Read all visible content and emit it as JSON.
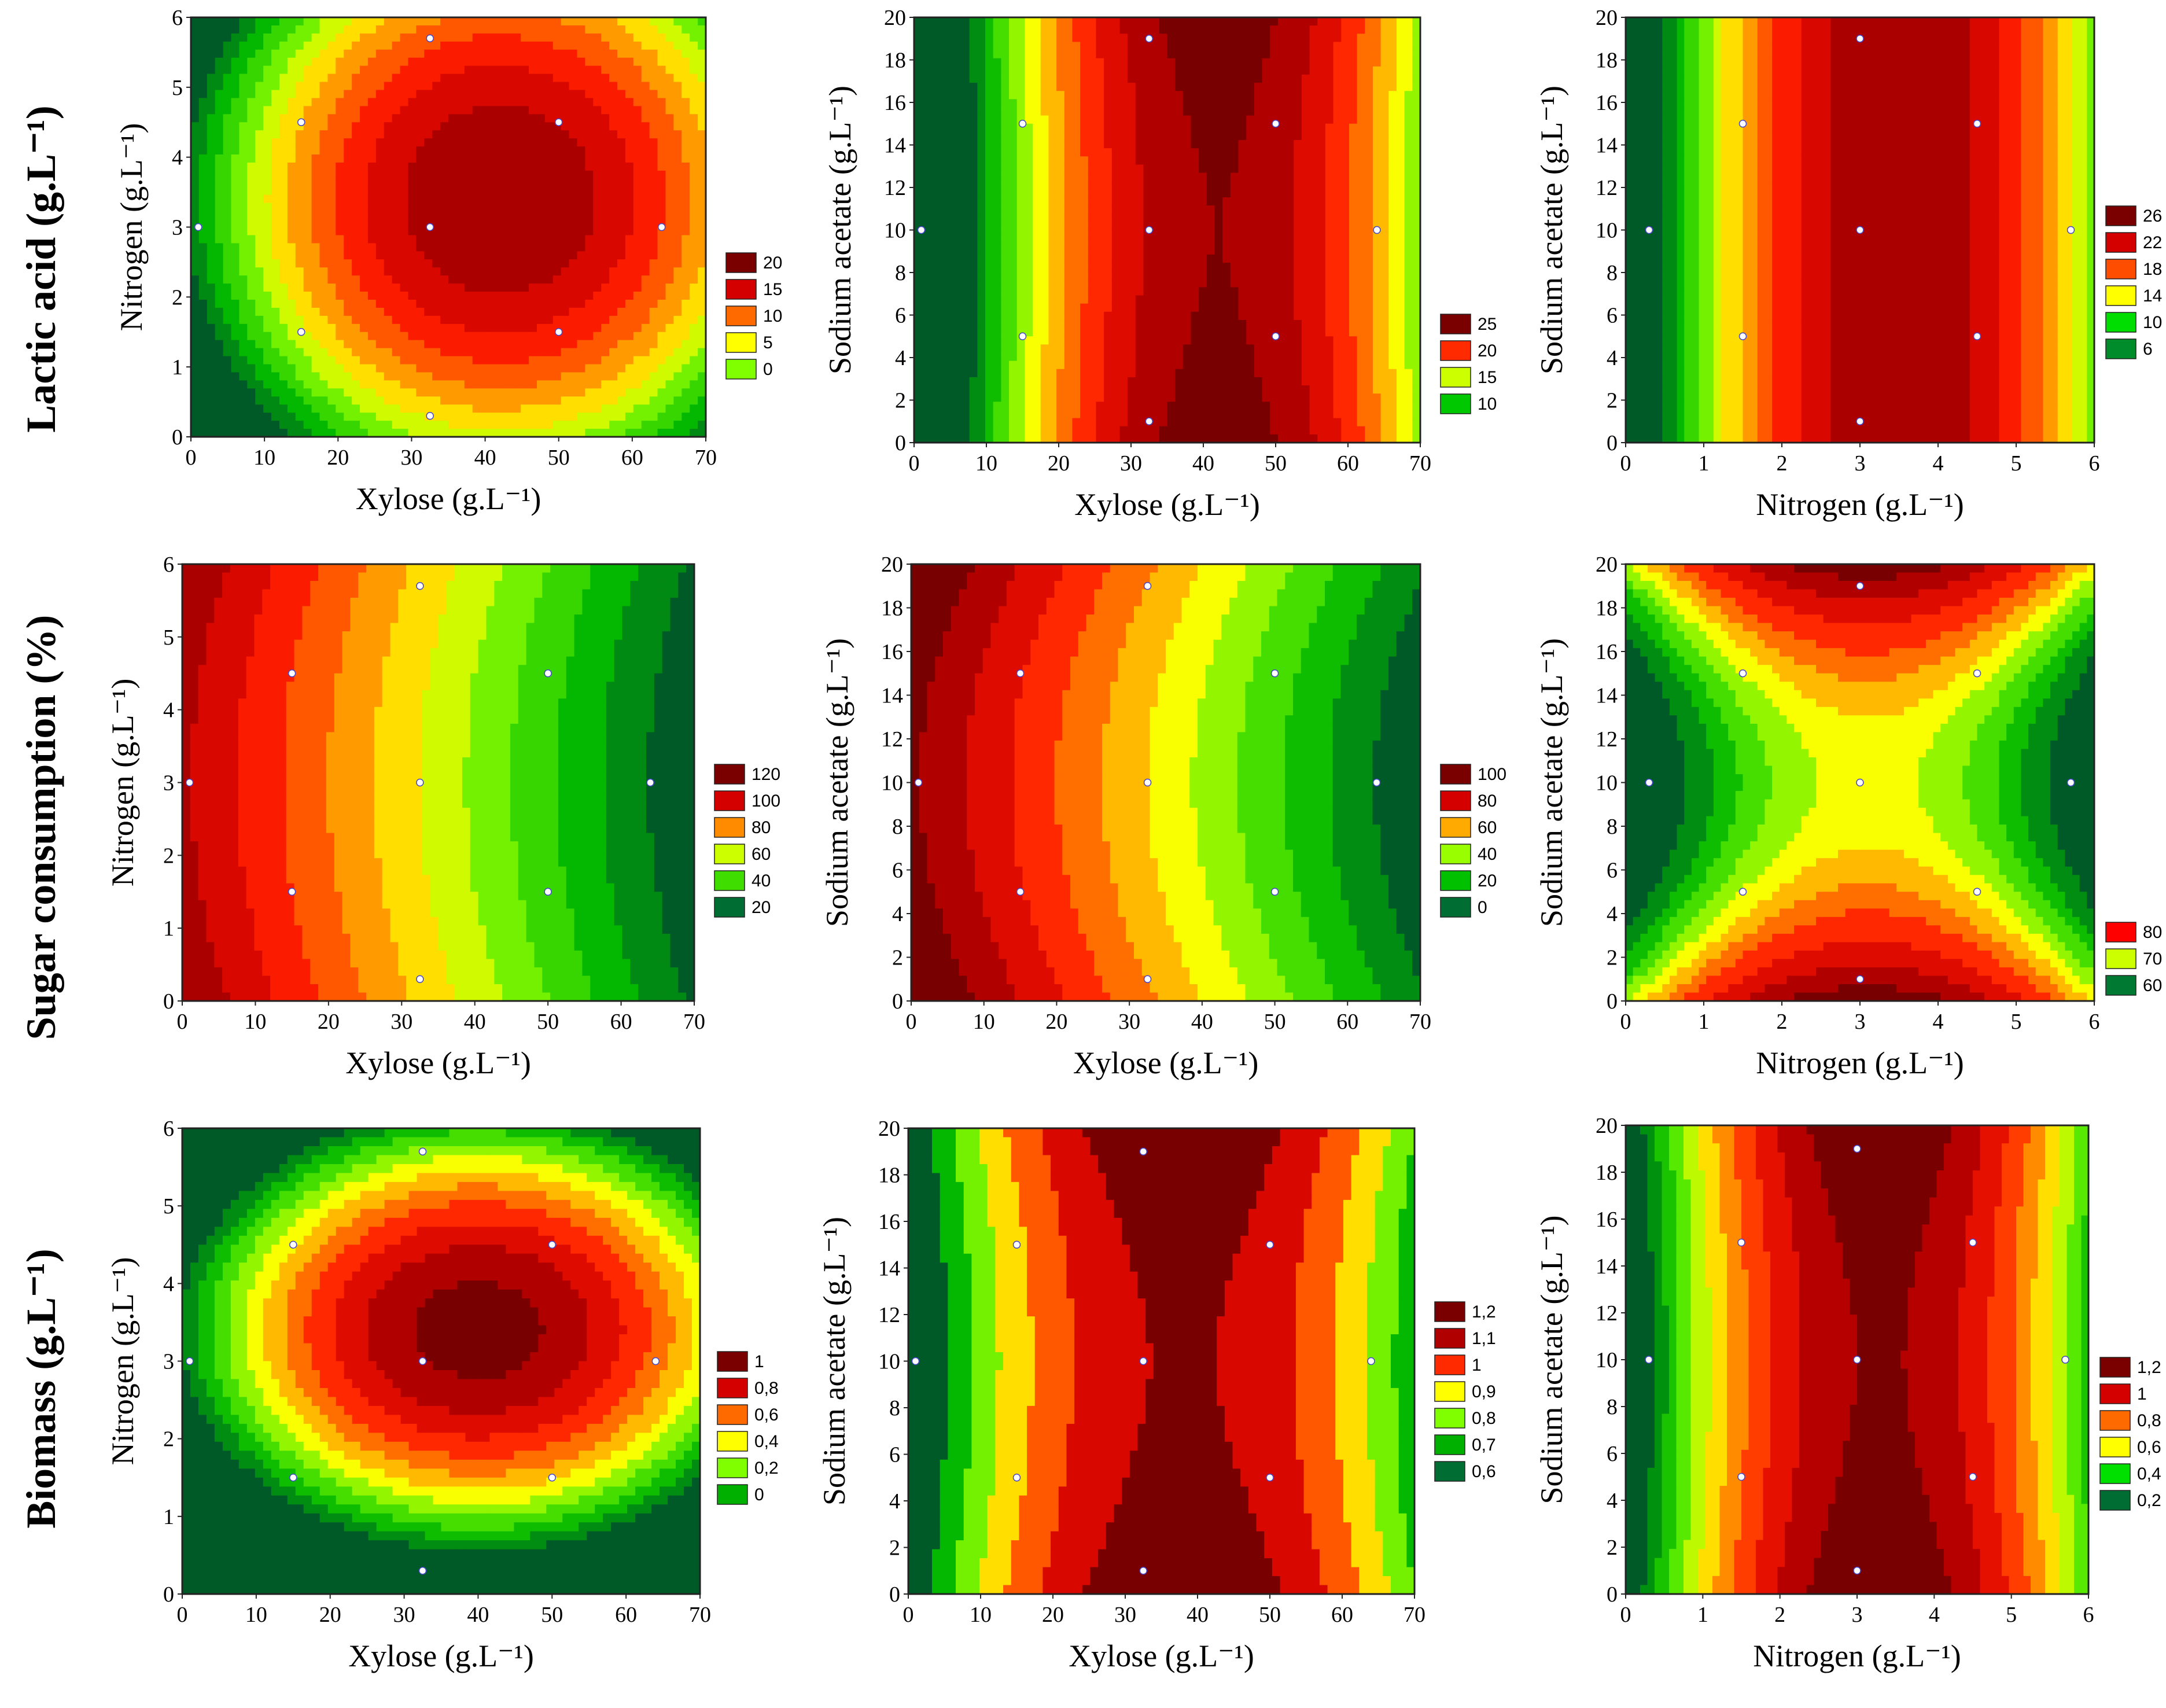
{
  "figure": {
    "row_labels": [
      "Lactic acid (g.L⁻¹)",
      "Sugar consumption (%)",
      "Biomass (g.L⁻¹)"
    ],
    "axis_titles": {
      "xylose": "Xylose (g.L⁻¹)",
      "nitrogen": "Nitrogen (g.L⁻¹)",
      "sodium_acetate": "Sodium acetate (g.L⁻¹)"
    }
  },
  "chart_data": [
    {
      "id": "p11",
      "type": "contour",
      "response": "Lactic acid",
      "xlabel": "Xylose (g.L⁻¹)",
      "ylabel": "Nitrogen (g.L⁻¹)",
      "xlim": [
        0,
        70
      ],
      "ylim": [
        0,
        6
      ],
      "xticks": [
        0,
        10,
        20,
        30,
        40,
        50,
        60,
        70
      ],
      "yticks": [
        0,
        1,
        2,
        3,
        4,
        5,
        6
      ],
      "surface": {
        "form": "quadratic",
        "center": [
          42,
          3.4
        ],
        "peak": 24,
        "ax": 0.012,
        "ay": 1.1,
        "bxy": 0
      },
      "levels": [
        24,
        22,
        20,
        18,
        16,
        14,
        12,
        10,
        8,
        6,
        4,
        2,
        0
      ],
      "legend": [
        {
          "label": "20",
          "color": "#7a0000"
        },
        {
          "label": "15",
          "color": "#d40000"
        },
        {
          "label": "10",
          "color": "#ff6a00"
        },
        {
          "label": "5",
          "color": "#ffff00"
        },
        {
          "label": "0",
          "color": "#80ff00"
        }
      ],
      "design_points": [
        [
          1,
          3
        ],
        [
          15,
          4.5
        ],
        [
          15,
          1.5
        ],
        [
          32.5,
          5.7
        ],
        [
          32.5,
          3
        ],
        [
          32.5,
          0.3
        ],
        [
          50,
          4.5
        ],
        [
          50,
          1.5
        ],
        [
          64,
          3
        ]
      ]
    },
    {
      "id": "p12",
      "type": "contour",
      "response": "Lactic acid",
      "xlabel": "Xylose (g.L⁻¹)",
      "ylabel": "Sodium acetate (g.L⁻¹)",
      "xlim": [
        0,
        70
      ],
      "ylim": [
        0,
        20
      ],
      "xticks": [
        0,
        10,
        20,
        30,
        40,
        50,
        60,
        70
      ],
      "yticks": [
        0,
        2,
        4,
        6,
        8,
        10,
        12,
        14,
        16,
        18,
        20
      ],
      "surface": {
        "form": "quadratic",
        "center": [
          42,
          10
        ],
        "peak": 30,
        "ax": 0.018,
        "ay": -0.012,
        "bxy": 0
      },
      "levels": [
        30,
        28,
        26,
        24,
        22,
        20,
        18,
        16,
        14,
        12,
        10,
        8
      ],
      "legend": [
        {
          "label": "25",
          "color": "#7a0000"
        },
        {
          "label": "20",
          "color": "#ff2a00"
        },
        {
          "label": "15",
          "color": "#ccff00"
        },
        {
          "label": "10",
          "color": "#00c800"
        }
      ],
      "design_points": [
        [
          1,
          10
        ],
        [
          15,
          15
        ],
        [
          15,
          5
        ],
        [
          32.5,
          19
        ],
        [
          32.5,
          10
        ],
        [
          32.5,
          1
        ],
        [
          50,
          15
        ],
        [
          50,
          5
        ],
        [
          64,
          10
        ]
      ]
    },
    {
      "id": "p13",
      "type": "contour",
      "response": "Lactic acid",
      "xlabel": "Nitrogen (g.L⁻¹)",
      "ylabel": "Sodium acetate (g.L⁻¹)",
      "xlim": [
        0,
        6
      ],
      "ylim": [
        0,
        20
      ],
      "xticks": [
        0,
        1,
        2,
        3,
        4,
        5,
        6
      ],
      "yticks": [
        0,
        2,
        4,
        6,
        8,
        10,
        12,
        14,
        16,
        18,
        20
      ],
      "surface": {
        "form": "quadratic",
        "center": [
          3.5,
          10
        ],
        "peak": 30,
        "ax": 2.4,
        "ay": 0,
        "bxy": 0
      },
      "levels": [
        30,
        28,
        26,
        24,
        22,
        20,
        18,
        16,
        14,
        12,
        10,
        8,
        6
      ],
      "legend": [
        {
          "label": "26",
          "color": "#7a0000"
        },
        {
          "label": "22",
          "color": "#d40000"
        },
        {
          "label": "18",
          "color": "#ff4d00"
        },
        {
          "label": "14",
          "color": "#ffff00"
        },
        {
          "label": "10",
          "color": "#00dd00"
        },
        {
          "label": "6",
          "color": "#008c2a"
        }
      ],
      "design_points": [
        [
          0.3,
          10
        ],
        [
          1.5,
          15
        ],
        [
          1.5,
          5
        ],
        [
          3,
          19
        ],
        [
          3,
          10
        ],
        [
          3,
          1
        ],
        [
          4.5,
          15
        ],
        [
          4.5,
          5
        ],
        [
          5.7,
          10
        ]
      ]
    },
    {
      "id": "p21",
      "type": "contour",
      "response": "Sugar consumption",
      "xlabel": "Xylose (g.L⁻¹)",
      "ylabel": "Nitrogen (g.L⁻¹)",
      "xlim": [
        0,
        70
      ],
      "ylim": [
        0,
        6
      ],
      "xticks": [
        0,
        10,
        20,
        30,
        40,
        50,
        60,
        70
      ],
      "yticks": [
        0,
        1,
        2,
        3,
        4,
        5,
        6
      ],
      "surface": {
        "form": "linear",
        "x0": 70,
        "y0": 3,
        "base": 10,
        "cx": 1.6,
        "cy": 0.9
      },
      "levels": [
        130,
        120,
        110,
        100,
        90,
        80,
        70,
        60,
        50,
        40,
        30,
        20,
        10
      ],
      "legend": [
        {
          "label": "120",
          "color": "#7a0000"
        },
        {
          "label": "100",
          "color": "#d40000"
        },
        {
          "label": "80",
          "color": "#ff8c00"
        },
        {
          "label": "60",
          "color": "#ccff00"
        },
        {
          "label": "40",
          "color": "#40dd00"
        },
        {
          "label": "20",
          "color": "#006e33"
        }
      ],
      "design_points": [
        [
          1,
          3
        ],
        [
          15,
          4.5
        ],
        [
          15,
          1.5
        ],
        [
          32.5,
          5.7
        ],
        [
          32.5,
          3
        ],
        [
          32.5,
          0.3
        ],
        [
          50,
          4.5
        ],
        [
          50,
          1.5
        ],
        [
          64,
          3
        ]
      ]
    },
    {
      "id": "p22",
      "type": "contour",
      "response": "Sugar consumption",
      "xlabel": "Xylose (g.L⁻¹)",
      "ylabel": "Sodium acetate (g.L⁻¹)",
      "xlim": [
        0,
        70
      ],
      "ylim": [
        0,
        20
      ],
      "xticks": [
        0,
        10,
        20,
        30,
        40,
        50,
        60,
        70
      ],
      "yticks": [
        0,
        2,
        4,
        6,
        8,
        10,
        12,
        14,
        16,
        18,
        20
      ],
      "surface": {
        "form": "linear",
        "x0": 70,
        "y0": 10,
        "base": 0,
        "cx": 1.6,
        "cy": 0.12
      },
      "levels": [
        110,
        100,
        90,
        80,
        70,
        60,
        50,
        40,
        30,
        20,
        10,
        0
      ],
      "legend": [
        {
          "label": "100",
          "color": "#7a0000"
        },
        {
          "label": "80",
          "color": "#d40000"
        },
        {
          "label": "60",
          "color": "#ffaa00"
        },
        {
          "label": "40",
          "color": "#99ff00"
        },
        {
          "label": "20",
          "color": "#00c000"
        },
        {
          "label": "0",
          "color": "#006e33"
        }
      ],
      "design_points": [
        [
          1,
          10
        ],
        [
          15,
          15
        ],
        [
          15,
          5
        ],
        [
          32.5,
          19
        ],
        [
          32.5,
          10
        ],
        [
          32.5,
          1
        ],
        [
          50,
          15
        ],
        [
          50,
          5
        ],
        [
          64,
          10
        ]
      ]
    },
    {
      "id": "p23",
      "type": "contour",
      "response": "Sugar consumption",
      "xlabel": "Nitrogen (g.L⁻¹)",
      "ylabel": "Sodium acetate (g.L⁻¹)",
      "xlim": [
        0,
        6
      ],
      "ylim": [
        0,
        20
      ],
      "xticks": [
        0,
        1,
        2,
        3,
        4,
        5,
        6
      ],
      "yticks": [
        0,
        2,
        4,
        6,
        8,
        10,
        12,
        14,
        16,
        18,
        20
      ],
      "surface": {
        "form": "saddle",
        "center": [
          3.1,
          10
        ],
        "base": 70,
        "kx": 2.6,
        "ky": 0.23
      },
      "levels": [
        90,
        86,
        82,
        78,
        75,
        72,
        69,
        66,
        63,
        60,
        56,
        52
      ],
      "legend": [
        {
          "label": "80",
          "color": "#ff0000"
        },
        {
          "label": "70",
          "color": "#ccff00"
        },
        {
          "label": "60",
          "color": "#007a33"
        }
      ],
      "design_points": [
        [
          0.3,
          10
        ],
        [
          1.5,
          15
        ],
        [
          1.5,
          5
        ],
        [
          3,
          19
        ],
        [
          3,
          10
        ],
        [
          3,
          1
        ],
        [
          4.5,
          15
        ],
        [
          4.5,
          5
        ],
        [
          5.7,
          10
        ]
      ]
    },
    {
      "id": "p31",
      "type": "contour",
      "response": "Biomass",
      "xlabel": "Xylose (g.L⁻¹)",
      "ylabel": "Nitrogen (g.L⁻¹)",
      "xlim": [
        0,
        70
      ],
      "ylim": [
        0,
        6
      ],
      "xticks": [
        0,
        10,
        20,
        30,
        40,
        50,
        60,
        70
      ],
      "yticks": [
        0,
        1,
        2,
        3,
        4,
        5,
        6
      ],
      "surface": {
        "form": "quadratic",
        "center": [
          40,
          3.4
        ],
        "peak": 1.15,
        "ax": 0.00065,
        "ay": 0.13,
        "bxy": 0
      },
      "levels": [
        1.1,
        1.0,
        0.9,
        0.8,
        0.7,
        0.6,
        0.5,
        0.4,
        0.3,
        0.2,
        0.1,
        0
      ],
      "legend": [
        {
          "label": "1",
          "color": "#7a0000"
        },
        {
          "label": "0,8",
          "color": "#d40000"
        },
        {
          "label": "0,6",
          "color": "#ff6a00"
        },
        {
          "label": "0,4",
          "color": "#ffff00"
        },
        {
          "label": "0,2",
          "color": "#80ff00"
        },
        {
          "label": "0",
          "color": "#00b000"
        }
      ],
      "design_points": [
        [
          1,
          3
        ],
        [
          15,
          4.5
        ],
        [
          15,
          1.5
        ],
        [
          32.5,
          5.7
        ],
        [
          32.5,
          3
        ],
        [
          32.5,
          0.3
        ],
        [
          50,
          4.5
        ],
        [
          50,
          1.5
        ],
        [
          64,
          3
        ]
      ]
    },
    {
      "id": "p32",
      "type": "contour",
      "response": "Biomass",
      "xlabel": "Xylose (g.L⁻¹)",
      "ylabel": "Sodium acetate (g.L⁻¹)",
      "xlim": [
        0,
        70
      ],
      "ylim": [
        0,
        20
      ],
      "xticks": [
        0,
        10,
        20,
        30,
        40,
        50,
        60,
        70
      ],
      "yticks": [
        0,
        2,
        4,
        6,
        8,
        10,
        12,
        14,
        16,
        18,
        20
      ],
      "surface": {
        "form": "saddle",
        "center": [
          38,
          10
        ],
        "base": 1.21,
        "kx": 0.00048,
        "ky": 0.0008
      },
      "levels": [
        1.2,
        1.1,
        1.0,
        0.9,
        0.8,
        0.7,
        0.6
      ],
      "legend": [
        {
          "label": "1,2",
          "color": "#7a0000"
        },
        {
          "label": "1,1",
          "color": "#b00000"
        },
        {
          "label": "1",
          "color": "#ff2a00"
        },
        {
          "label": "0,9",
          "color": "#ffff00"
        },
        {
          "label": "0,8",
          "color": "#80ff00"
        },
        {
          "label": "0,7",
          "color": "#00b000"
        },
        {
          "label": "0,6",
          "color": "#006e33"
        }
      ],
      "design_points": [
        [
          1,
          10
        ],
        [
          15,
          15
        ],
        [
          15,
          5
        ],
        [
          32.5,
          19
        ],
        [
          32.5,
          10
        ],
        [
          32.5,
          1
        ],
        [
          50,
          15
        ],
        [
          50,
          5
        ],
        [
          64,
          10
        ]
      ]
    },
    {
      "id": "p33",
      "type": "contour",
      "response": "Biomass",
      "xlabel": "Nitrogen (g.L⁻¹)",
      "ylabel": "Sodium acetate (g.L⁻¹)",
      "xlim": [
        0,
        6
      ],
      "ylim": [
        0,
        20
      ],
      "xticks": [
        0,
        1,
        2,
        3,
        4,
        5,
        6
      ],
      "yticks": [
        0,
        2,
        4,
        6,
        8,
        10,
        12,
        14,
        16,
        18,
        20
      ],
      "surface": {
        "form": "saddle",
        "center": [
          3.3,
          10
        ],
        "base": 1.21,
        "kx": 0.105,
        "ky": 0.0008
      },
      "levels": [
        1.2,
        1.1,
        1.0,
        0.9,
        0.8,
        0.7,
        0.6,
        0.5,
        0.4,
        0.3,
        0.2
      ],
      "legend": [
        {
          "label": "1,2",
          "color": "#7a0000"
        },
        {
          "label": "1",
          "color": "#d40000"
        },
        {
          "label": "0,8",
          "color": "#ff6a00"
        },
        {
          "label": "0,6",
          "color": "#ffff00"
        },
        {
          "label": "0,4",
          "color": "#00e000"
        },
        {
          "label": "0,2",
          "color": "#006e33"
        }
      ],
      "design_points": [
        [
          0.3,
          10
        ],
        [
          1.5,
          15
        ],
        [
          1.5,
          5
        ],
        [
          3,
          19
        ],
        [
          3,
          10
        ],
        [
          3,
          1
        ],
        [
          4.5,
          15
        ],
        [
          4.5,
          5
        ],
        [
          5.7,
          10
        ]
      ]
    }
  ]
}
